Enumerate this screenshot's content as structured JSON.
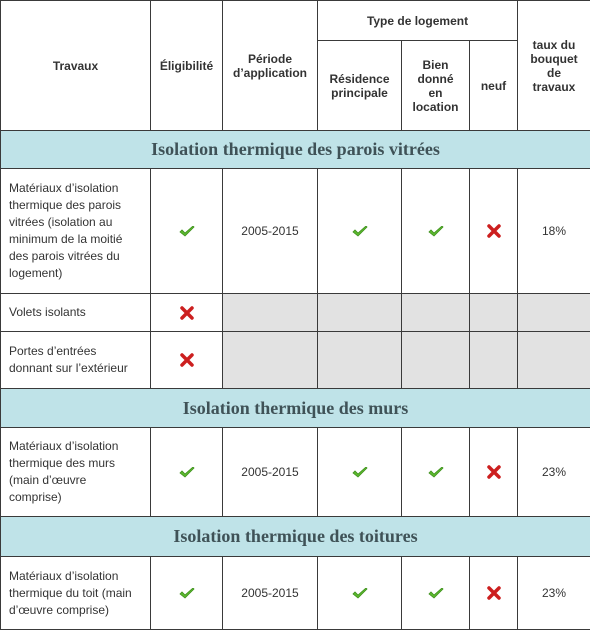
{
  "header": {
    "travaux": "Travaux",
    "eligibilite": "Éligibilité",
    "periode": "Période d’application",
    "type_logement": "Type de logement",
    "residence": "Résidence principale",
    "location": "Bien donné en location",
    "neuf": "neuf",
    "taux": "taux du bouquet de travaux"
  },
  "sections": [
    {
      "title": "Isolation thermique des parois vitrées",
      "rows": [
        {
          "travaux": "Matériaux d’isolation thermique des parois vitrées (isolation au minimum de la moitié des parois vitrées du logement)",
          "periode": "2005-2015",
          "taux": "18%"
        },
        {
          "travaux": "Volets isolants"
        },
        {
          "travaux": "Portes d’entrées donnant sur l’extérieur"
        }
      ]
    },
    {
      "title": "Isolation thermique des murs",
      "rows": [
        {
          "travaux": "Matériaux d’isolation thermique des murs (main d’œuvre comprise)",
          "periode": "2005-2015",
          "taux": "23%"
        }
      ]
    },
    {
      "title": "Isolation thermique des toitures",
      "rows": [
        {
          "travaux": "Matériaux d’isolation thermique du toit (main d’œuvre comprise)",
          "periode": "2005-2015",
          "taux": "23%"
        }
      ]
    }
  ]
}
